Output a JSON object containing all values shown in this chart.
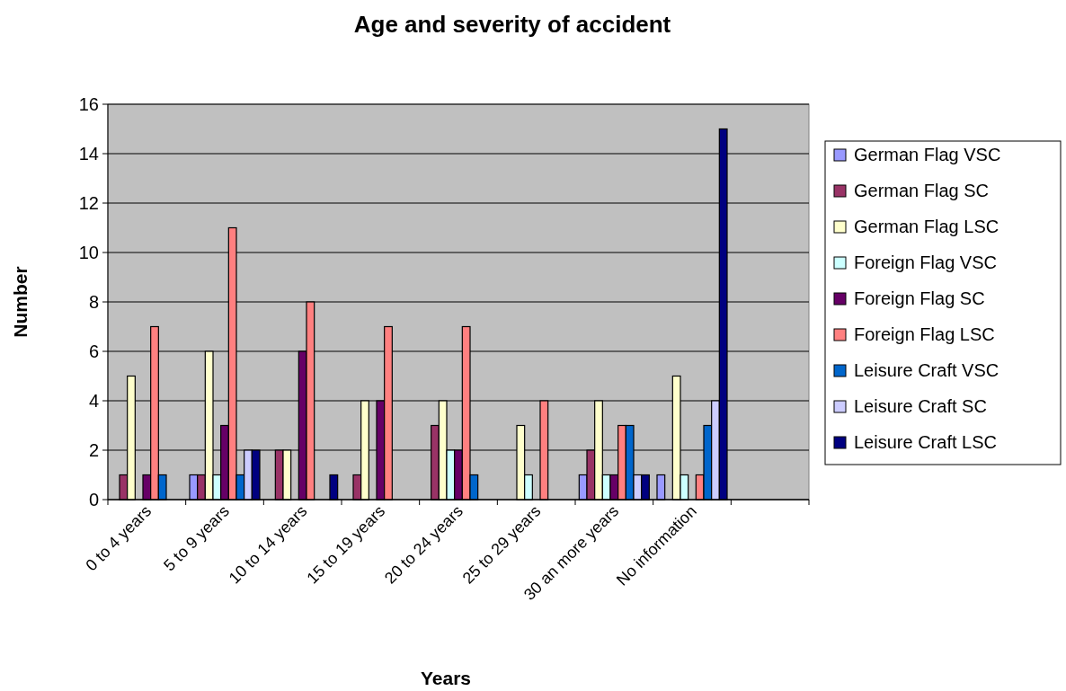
{
  "chart_data": {
    "type": "bar",
    "title": "Age and severity of accident",
    "xlabel": "Years",
    "ylabel": "Number",
    "categories": [
      "0 to 4 years",
      "5 to 9 years",
      "10 to 14 years",
      "15 to 19 years",
      "20 to 24 years",
      "25 to 29 years",
      "30 an more years",
      "No information",
      null
    ],
    "series": [
      {
        "name": "German Flag VSC",
        "color": "#9999ff",
        "values": [
          0,
          1,
          0,
          0,
          0,
          0,
          1,
          1,
          null
        ]
      },
      {
        "name": "German Flag SC",
        "color": "#993366",
        "values": [
          1,
          1,
          2,
          1,
          3,
          0,
          2,
          0,
          null
        ]
      },
      {
        "name": "German Flag LSC",
        "color": "#ffffcc",
        "values": [
          5,
          6,
          2,
          4,
          4,
          3,
          4,
          5,
          null
        ]
      },
      {
        "name": "Foreign Flag VSC",
        "color": "#ccffff",
        "values": [
          0,
          1,
          0,
          0,
          2,
          1,
          1,
          1,
          null
        ]
      },
      {
        "name": "Foreign Flag SC",
        "color": "#660066",
        "values": [
          1,
          3,
          6,
          4,
          2,
          0,
          1,
          0,
          null
        ]
      },
      {
        "name": "Foreign Flag LSC",
        "color": "#ff8080",
        "values": [
          7,
          11,
          8,
          7,
          7,
          4,
          3,
          1,
          null
        ]
      },
      {
        "name": "Leisure Craft VSC",
        "color": "#0066cc",
        "values": [
          1,
          1,
          0,
          0,
          1,
          0,
          3,
          3,
          null
        ]
      },
      {
        "name": "Leisure Craft SC",
        "color": "#ccccff",
        "values": [
          0,
          2,
          0,
          0,
          0,
          0,
          1,
          4,
          null
        ]
      },
      {
        "name": "Leisure Craft LSC",
        "color": "#000080",
        "values": [
          0,
          2,
          1,
          0,
          0,
          0,
          1,
          15,
          null
        ]
      }
    ],
    "ylim": [
      0,
      16
    ],
    "yticks": [
      0,
      2,
      4,
      6,
      8,
      10,
      12,
      14,
      16
    ],
    "grid": "y",
    "legend": "right"
  }
}
